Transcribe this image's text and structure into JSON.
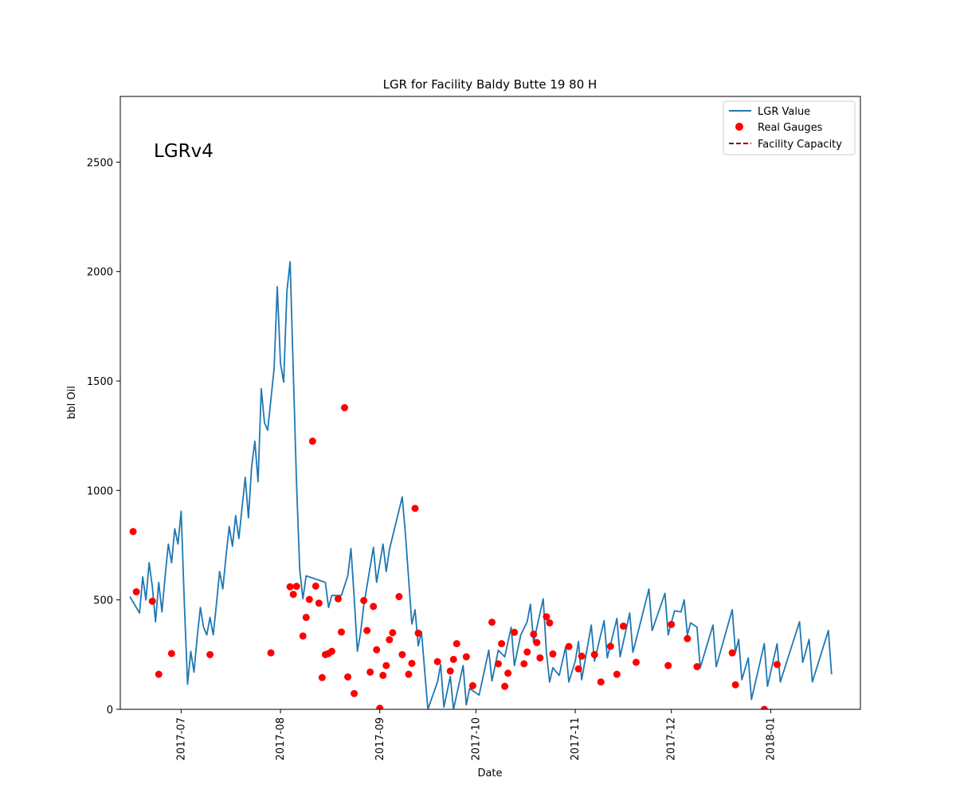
{
  "chart_data": {
    "type": "line",
    "title": "LGR for Facility Baldy Butte 19 80 H",
    "xlabel": "Date",
    "ylabel": "bbl Oil",
    "annotation": "LGRv4",
    "xlim": [
      "2017-06-12",
      "2018-01-29"
    ],
    "ylim": [
      0,
      2800
    ],
    "x_ticks": [
      "2017-07-01",
      "2017-08-01",
      "2017-09-01",
      "2017-10-01",
      "2017-11-01",
      "2017-12-01",
      "2018-01-01"
    ],
    "x_tick_labels": [
      "2017-07",
      "2017-08",
      "2017-09",
      "2017-10",
      "2017-11",
      "2017-12",
      "2018-01"
    ],
    "y_ticks": [
      0,
      500,
      1000,
      1500,
      2000,
      2500
    ],
    "y_tick_labels": [
      "0",
      "500",
      "1000",
      "1500",
      "2000",
      "2500"
    ],
    "legend": {
      "placement": "top-right",
      "entries": [
        "LGR Value",
        "Real Gauges",
        "Facility Capacity"
      ]
    },
    "colors": {
      "line": "#1f77b4",
      "points": "#ff0000",
      "capacity": "#8b0000"
    },
    "series": [
      {
        "name": "LGR Value",
        "style": "line",
        "points": [
          [
            "2017-06-15",
            515
          ],
          [
            "2017-06-18",
            440
          ],
          [
            "2017-06-19",
            605
          ],
          [
            "2017-06-20",
            500
          ],
          [
            "2017-06-21",
            670
          ],
          [
            "2017-06-22",
            560
          ],
          [
            "2017-06-23",
            400
          ],
          [
            "2017-06-24",
            580
          ],
          [
            "2017-06-25",
            445
          ],
          [
            "2017-06-26",
            610
          ],
          [
            "2017-06-27",
            755
          ],
          [
            "2017-06-28",
            670
          ],
          [
            "2017-06-29",
            825
          ],
          [
            "2017-06-30",
            755
          ],
          [
            "2017-07-01",
            905
          ],
          [
            "2017-07-02",
            480
          ],
          [
            "2017-07-03",
            115
          ],
          [
            "2017-07-04",
            265
          ],
          [
            "2017-07-05",
            170
          ],
          [
            "2017-07-06",
            330
          ],
          [
            "2017-07-07",
            465
          ],
          [
            "2017-07-08",
            375
          ],
          [
            "2017-07-09",
            340
          ],
          [
            "2017-07-10",
            420
          ],
          [
            "2017-07-11",
            340
          ],
          [
            "2017-07-12",
            480
          ],
          [
            "2017-07-13",
            630
          ],
          [
            "2017-07-14",
            550
          ],
          [
            "2017-07-15",
            700
          ],
          [
            "2017-07-16",
            835
          ],
          [
            "2017-07-17",
            745
          ],
          [
            "2017-07-18",
            885
          ],
          [
            "2017-07-19",
            780
          ],
          [
            "2017-07-20",
            920
          ],
          [
            "2017-07-21",
            1060
          ],
          [
            "2017-07-22",
            875
          ],
          [
            "2017-07-23",
            1110
          ],
          [
            "2017-07-24",
            1225
          ],
          [
            "2017-07-25",
            1040
          ],
          [
            "2017-07-26",
            1465
          ],
          [
            "2017-07-27",
            1310
          ],
          [
            "2017-07-28",
            1275
          ],
          [
            "2017-07-30",
            1555
          ],
          [
            "2017-07-31",
            1930
          ],
          [
            "2017-08-01",
            1580
          ],
          [
            "2017-08-02",
            1495
          ],
          [
            "2017-08-03",
            1910
          ],
          [
            "2017-08-04",
            2045
          ],
          [
            "2017-08-05",
            1540
          ],
          [
            "2017-08-06",
            1035
          ],
          [
            "2017-08-07",
            640
          ],
          [
            "2017-08-08",
            505
          ],
          [
            "2017-08-09",
            610
          ],
          [
            "2017-08-15",
            580
          ],
          [
            "2017-08-16",
            465
          ],
          [
            "2017-08-17",
            520
          ],
          [
            "2017-08-20",
            520
          ],
          [
            "2017-08-22",
            610
          ],
          [
            "2017-08-23",
            735
          ],
          [
            "2017-08-24",
            510
          ],
          [
            "2017-08-25",
            265
          ],
          [
            "2017-08-26",
            350
          ],
          [
            "2017-08-27",
            475
          ],
          [
            "2017-08-30",
            740
          ],
          [
            "2017-08-31",
            580
          ],
          [
            "2017-09-02",
            755
          ],
          [
            "2017-09-03",
            630
          ],
          [
            "2017-09-04",
            730
          ],
          [
            "2017-09-08",
            970
          ],
          [
            "2017-09-09",
            800
          ],
          [
            "2017-09-11",
            390
          ],
          [
            "2017-09-12",
            455
          ],
          [
            "2017-09-13",
            290
          ],
          [
            "2017-09-14",
            355
          ],
          [
            "2017-09-16",
            0
          ],
          [
            "2017-09-19",
            125
          ],
          [
            "2017-09-20",
            205
          ],
          [
            "2017-09-21",
            10
          ],
          [
            "2017-09-23",
            150
          ],
          [
            "2017-09-24",
            0
          ],
          [
            "2017-09-27",
            200
          ],
          [
            "2017-09-28",
            20
          ],
          [
            "2017-09-29",
            95
          ],
          [
            "2017-10-02",
            65
          ],
          [
            "2017-10-05",
            270
          ],
          [
            "2017-10-06",
            130
          ],
          [
            "2017-10-08",
            270
          ],
          [
            "2017-10-10",
            240
          ],
          [
            "2017-10-12",
            375
          ],
          [
            "2017-10-13",
            200
          ],
          [
            "2017-10-15",
            340
          ],
          [
            "2017-10-17",
            400
          ],
          [
            "2017-10-18",
            480
          ],
          [
            "2017-10-19",
            305
          ],
          [
            "2017-10-21",
            440
          ],
          [
            "2017-10-22",
            505
          ],
          [
            "2017-10-23",
            260
          ],
          [
            "2017-10-24",
            125
          ],
          [
            "2017-10-25",
            190
          ],
          [
            "2017-10-27",
            155
          ],
          [
            "2017-10-29",
            285
          ],
          [
            "2017-10-30",
            125
          ],
          [
            "2017-11-01",
            220
          ],
          [
            "2017-11-02",
            310
          ],
          [
            "2017-11-03",
            135
          ],
          [
            "2017-11-06",
            385
          ],
          [
            "2017-11-07",
            220
          ],
          [
            "2017-11-10",
            405
          ],
          [
            "2017-11-11",
            235
          ],
          [
            "2017-11-14",
            415
          ],
          [
            "2017-11-15",
            240
          ],
          [
            "2017-11-18",
            440
          ],
          [
            "2017-11-19",
            260
          ],
          [
            "2017-11-24",
            550
          ],
          [
            "2017-11-25",
            360
          ],
          [
            "2017-11-29",
            530
          ],
          [
            "2017-11-30",
            340
          ],
          [
            "2017-12-02",
            450
          ],
          [
            "2017-12-04",
            445
          ],
          [
            "2017-12-05",
            500
          ],
          [
            "2017-12-06",
            340
          ],
          [
            "2017-12-07",
            395
          ],
          [
            "2017-12-09",
            375
          ],
          [
            "2017-12-10",
            190
          ],
          [
            "2017-12-14",
            385
          ],
          [
            "2017-12-15",
            195
          ],
          [
            "2017-12-20",
            455
          ],
          [
            "2017-12-21",
            260
          ],
          [
            "2017-12-22",
            320
          ],
          [
            "2017-12-23",
            135
          ],
          [
            "2017-12-25",
            235
          ],
          [
            "2017-12-26",
            45
          ],
          [
            "2017-12-30",
            300
          ],
          [
            "2017-12-31",
            105
          ],
          [
            "2018-01-03",
            300
          ],
          [
            "2018-01-04",
            125
          ],
          [
            "2018-01-10",
            400
          ],
          [
            "2018-01-11",
            215
          ],
          [
            "2018-01-13",
            320
          ],
          [
            "2018-01-14",
            125
          ],
          [
            "2018-01-19",
            360
          ],
          [
            "2018-01-20",
            160
          ]
        ]
      },
      {
        "name": "Real Gauges",
        "style": "scatter",
        "points": [
          [
            "2017-06-16",
            812
          ],
          [
            "2017-06-17",
            537
          ],
          [
            "2017-06-22",
            494
          ],
          [
            "2017-06-24",
            160
          ],
          [
            "2017-06-28",
            255
          ],
          [
            "2017-07-10",
            250
          ],
          [
            "2017-07-29",
            258
          ],
          [
            "2017-08-04",
            560
          ],
          [
            "2017-08-05",
            525
          ],
          [
            "2017-08-06",
            562
          ],
          [
            "2017-08-08",
            335
          ],
          [
            "2017-08-09",
            420
          ],
          [
            "2017-08-10",
            502
          ],
          [
            "2017-08-11",
            1225
          ],
          [
            "2017-08-12",
            563
          ],
          [
            "2017-08-13",
            485
          ],
          [
            "2017-08-14",
            145
          ],
          [
            "2017-08-15",
            250
          ],
          [
            "2017-08-16",
            255
          ],
          [
            "2017-08-17",
            265
          ],
          [
            "2017-08-19",
            505
          ],
          [
            "2017-08-20",
            353
          ],
          [
            "2017-08-21",
            1378
          ],
          [
            "2017-08-22",
            148
          ],
          [
            "2017-08-24",
            72
          ],
          [
            "2017-08-27",
            497
          ],
          [
            "2017-08-28",
            360
          ],
          [
            "2017-08-29",
            170
          ],
          [
            "2017-08-30",
            470
          ],
          [
            "2017-08-31",
            272
          ],
          [
            "2017-09-01",
            5
          ],
          [
            "2017-09-02",
            155
          ],
          [
            "2017-09-03",
            200
          ],
          [
            "2017-09-04",
            318
          ],
          [
            "2017-09-05",
            350
          ],
          [
            "2017-09-07",
            515
          ],
          [
            "2017-09-08",
            250
          ],
          [
            "2017-09-10",
            160
          ],
          [
            "2017-09-11",
            210
          ],
          [
            "2017-09-12",
            918
          ],
          [
            "2017-09-13",
            348
          ],
          [
            "2017-09-19",
            218
          ],
          [
            "2017-09-23",
            175
          ],
          [
            "2017-09-24",
            228
          ],
          [
            "2017-09-25",
            300
          ],
          [
            "2017-09-28",
            240
          ],
          [
            "2017-09-30",
            108
          ],
          [
            "2017-10-06",
            398
          ],
          [
            "2017-10-08",
            208
          ],
          [
            "2017-10-09",
            300
          ],
          [
            "2017-10-10",
            105
          ],
          [
            "2017-10-11",
            165
          ],
          [
            "2017-10-13",
            352
          ],
          [
            "2017-10-16",
            208
          ],
          [
            "2017-10-17",
            262
          ],
          [
            "2017-10-19",
            343
          ],
          [
            "2017-10-20",
            305
          ],
          [
            "2017-10-21",
            235
          ],
          [
            "2017-10-23",
            423
          ],
          [
            "2017-10-24",
            395
          ],
          [
            "2017-10-25",
            253
          ],
          [
            "2017-10-30",
            287
          ],
          [
            "2017-11-02",
            185
          ],
          [
            "2017-11-03",
            243
          ],
          [
            "2017-11-07",
            250
          ],
          [
            "2017-11-09",
            125
          ],
          [
            "2017-11-12",
            288
          ],
          [
            "2017-11-14",
            160
          ],
          [
            "2017-11-16",
            380
          ],
          [
            "2017-11-20",
            215
          ],
          [
            "2017-11-30",
            200
          ],
          [
            "2017-12-01",
            388
          ],
          [
            "2017-12-06",
            323
          ],
          [
            "2017-12-09",
            195
          ],
          [
            "2017-12-20",
            258
          ],
          [
            "2017-12-21",
            112
          ],
          [
            "2017-12-30",
            0
          ],
          [
            "2018-01-03",
            205
          ]
        ]
      },
      {
        "name": "Facility Capacity",
        "style": "dashed-line",
        "points": []
      }
    ]
  }
}
